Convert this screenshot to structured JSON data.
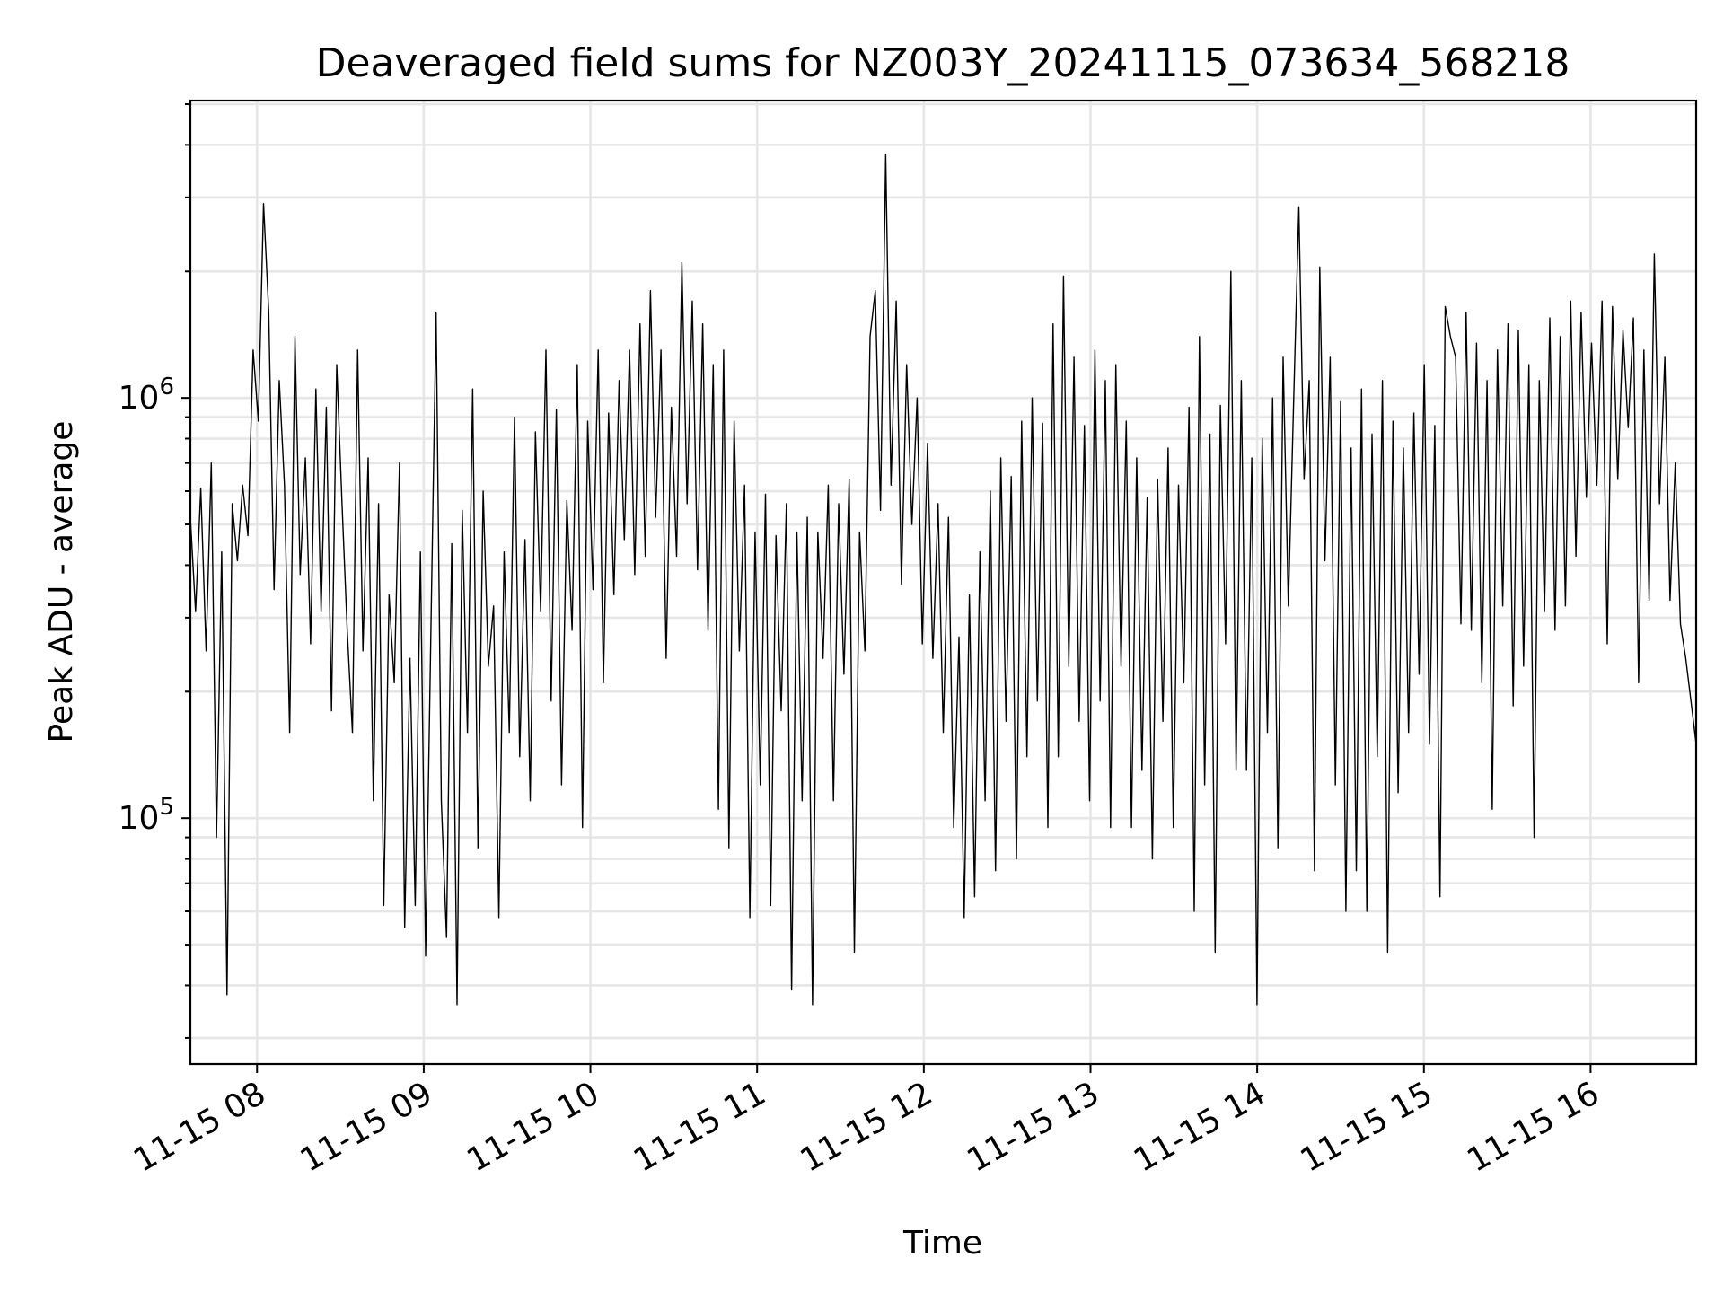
{
  "chart_data": {
    "type": "line",
    "title": "Deaveraged field sums for NZ003Y_20241115_073634_568218",
    "xlabel": "Time",
    "ylabel": "Peak ADU - average",
    "y_scale": "log",
    "xlim": [
      "2024-11-15 07:36",
      "2024-11-15 16:38"
    ],
    "ylim": [
      26000,
      5100000
    ],
    "x_ticks": [
      "11-15 08",
      "11-15 09",
      "11-15 10",
      "11-15 11",
      "11-15 12",
      "11-15 13",
      "11-15 14",
      "11-15 15",
      "11-15 16"
    ],
    "y_ticks": [
      {
        "base": "10",
        "exp": "5",
        "value": 100000
      },
      {
        "base": "10",
        "exp": "6",
        "value": 1000000
      }
    ],
    "grid": true,
    "line_color": "#000000",
    "series": [
      {
        "x_start": "2024-11-15 07:36",
        "x_end": "2024-11-15 16:38",
        "sample_interval_note": "",
        "values": [
          520000,
          310000,
          610000,
          250000,
          700000,
          90000,
          430000,
          38000,
          560000,
          410000,
          620000,
          470000,
          1300000,
          880000,
          2900000,
          1600000,
          350000,
          1100000,
          620000,
          160000,
          1400000,
          380000,
          720000,
          260000,
          1050000,
          310000,
          950000,
          180000,
          1200000,
          560000,
          280000,
          160000,
          1300000,
          250000,
          720000,
          110000,
          560000,
          62000,
          340000,
          210000,
          700000,
          55000,
          240000,
          62000,
          430000,
          47000,
          280000,
          1600000,
          110000,
          52000,
          450000,
          36000,
          540000,
          160000,
          1050000,
          85000,
          600000,
          230000,
          320000,
          58000,
          430000,
          160000,
          900000,
          140000,
          460000,
          110000,
          830000,
          310000,
          1300000,
          190000,
          940000,
          120000,
          570000,
          280000,
          1200000,
          95000,
          880000,
          350000,
          1300000,
          210000,
          920000,
          340000,
          1100000,
          460000,
          1300000,
          380000,
          1500000,
          420000,
          1800000,
          520000,
          1300000,
          240000,
          950000,
          420000,
          2100000,
          560000,
          1700000,
          390000,
          1500000,
          280000,
          1200000,
          105000,
          1300000,
          85000,
          880000,
          250000,
          620000,
          58000,
          480000,
          120000,
          590000,
          62000,
          470000,
          180000,
          560000,
          39000,
          480000,
          110000,
          520000,
          36000,
          480000,
          240000,
          620000,
          110000,
          560000,
          220000,
          640000,
          48000,
          480000,
          250000,
          1400000,
          1800000,
          540000,
          3800000,
          620000,
          1700000,
          360000,
          1200000,
          500000,
          1000000,
          260000,
          780000,
          240000,
          560000,
          160000,
          520000,
          95000,
          270000,
          58000,
          340000,
          65000,
          430000,
          110000,
          600000,
          75000,
          720000,
          170000,
          650000,
          80000,
          880000,
          140000,
          1000000,
          190000,
          870000,
          95000,
          1500000,
          140000,
          1950000,
          230000,
          1250000,
          170000,
          860000,
          110000,
          1300000,
          190000,
          1100000,
          95000,
          1200000,
          230000,
          880000,
          95000,
          720000,
          130000,
          580000,
          80000,
          640000,
          170000,
          760000,
          95000,
          620000,
          210000,
          950000,
          60000,
          1400000,
          120000,
          820000,
          48000,
          960000,
          260000,
          2000000,
          130000,
          1100000,
          130000,
          720000,
          36000,
          800000,
          160000,
          1000000,
          85000,
          1250000,
          320000,
          960000,
          2850000,
          640000,
          1100000,
          75000,
          2050000,
          410000,
          1250000,
          120000,
          980000,
          60000,
          760000,
          75000,
          1050000,
          60000,
          820000,
          140000,
          1100000,
          48000,
          880000,
          115000,
          760000,
          160000,
          920000,
          220000,
          1200000,
          150000,
          860000,
          65000,
          1650000,
          1400000,
          1250000,
          290000,
          1600000,
          280000,
          1350000,
          210000,
          1100000,
          105000,
          1300000,
          320000,
          1500000,
          185000,
          1450000,
          230000,
          1200000,
          90000,
          1100000,
          310000,
          1550000,
          280000,
          1400000,
          320000,
          1700000,
          420000,
          1600000,
          580000,
          1350000,
          620000,
          1700000,
          260000,
          1650000,
          640000,
          1450000,
          850000,
          1550000,
          210000,
          1300000,
          330000,
          2200000,
          560000,
          1250000,
          330000,
          700000,
          290000,
          240000,
          190000,
          150000
        ]
      }
    ]
  }
}
